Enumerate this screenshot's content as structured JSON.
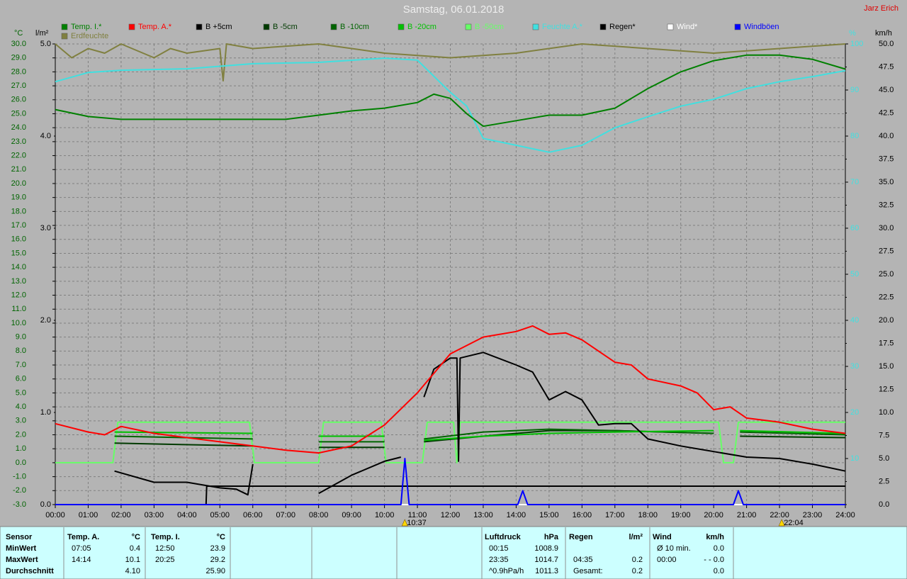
{
  "chart_data": {
    "type": "line",
    "title": "Samstag, 06.01.2018",
    "author": "Jarz Erich",
    "axis_units": {
      "y": "°C",
      "y2": "l/m²",
      "y3": "%",
      "y4": "km/h"
    },
    "grid": true,
    "xlim": [
      0,
      24
    ],
    "xticks": [
      {
        "value": 0,
        "label": "00:00"
      },
      {
        "value": 1,
        "label": "01:00"
      },
      {
        "value": 2,
        "label": "02:00"
      },
      {
        "value": 3,
        "label": "03:00"
      },
      {
        "value": 4,
        "label": "04:00"
      },
      {
        "value": 5,
        "label": "05:00"
      },
      {
        "value": 6,
        "label": "06:00"
      },
      {
        "value": 7,
        "label": "07:00"
      },
      {
        "value": 8,
        "label": "08:00"
      },
      {
        "value": 9,
        "label": "09:00"
      },
      {
        "value": 10,
        "label": "10:00"
      },
      {
        "value": 11,
        "label": "11:00"
      },
      {
        "value": 12,
        "label": "12:00"
      },
      {
        "value": 13,
        "label": "13:00"
      },
      {
        "value": 14,
        "label": "14:00"
      },
      {
        "value": 15,
        "label": "15:00"
      },
      {
        "value": 16,
        "label": "16:00"
      },
      {
        "value": 17,
        "label": "17:00"
      },
      {
        "value": 18,
        "label": "18:00"
      },
      {
        "value": 19,
        "label": "19:00"
      },
      {
        "value": 20,
        "label": "20:00"
      },
      {
        "value": 21,
        "label": "21:00"
      },
      {
        "value": 22,
        "label": "22:00"
      },
      {
        "value": 23,
        "label": "23:00"
      },
      {
        "value": 24,
        "label": "24:00"
      }
    ],
    "ylim": [
      -3,
      30
    ],
    "yticks": [
      {
        "value": -3,
        "label": "-3.0"
      },
      {
        "value": -2,
        "label": "-2.0"
      },
      {
        "value": -1,
        "label": "-1.0"
      },
      {
        "value": 0,
        "label": "0.0"
      },
      {
        "value": 1,
        "label": "1.0"
      },
      {
        "value": 2,
        "label": "2.0"
      },
      {
        "value": 3,
        "label": "3.0"
      },
      {
        "value": 4,
        "label": "4.0"
      },
      {
        "value": 5,
        "label": "5.0"
      },
      {
        "value": 6,
        "label": "6.0"
      },
      {
        "value": 7,
        "label": "7.0"
      },
      {
        "value": 8,
        "label": "8.0"
      },
      {
        "value": 9,
        "label": "9.0"
      },
      {
        "value": 10,
        "label": "10.0"
      },
      {
        "value": 11,
        "label": "11.0"
      },
      {
        "value": 12,
        "label": "12.0"
      },
      {
        "value": 13,
        "label": "13.0"
      },
      {
        "value": 14,
        "label": "14.0"
      },
      {
        "value": 15,
        "label": "15.0"
      },
      {
        "value": 16,
        "label": "16.0"
      },
      {
        "value": 17,
        "label": "17.0"
      },
      {
        "value": 18,
        "label": "18.0"
      },
      {
        "value": 19,
        "label": "19.0"
      },
      {
        "value": 20,
        "label": "20.0"
      },
      {
        "value": 21,
        "label": "21.0"
      },
      {
        "value": 22,
        "label": "22.0"
      },
      {
        "value": 23,
        "label": "23.0"
      },
      {
        "value": 24,
        "label": "24.0"
      },
      {
        "value": 25,
        "label": "25.0"
      },
      {
        "value": 26,
        "label": "26.0"
      },
      {
        "value": 27,
        "label": "27.0"
      },
      {
        "value": 28,
        "label": "28.0"
      },
      {
        "value": 29,
        "label": "29.0"
      },
      {
        "value": 30,
        "label": "30.0"
      }
    ],
    "y2lim": [
      0,
      5
    ],
    "y2ticks": [
      {
        "value": 0,
        "label": "0.0"
      },
      {
        "value": 1,
        "label": "1.0"
      },
      {
        "value": 2,
        "label": "2.0"
      },
      {
        "value": 3,
        "label": "3.0"
      },
      {
        "value": 4,
        "label": "4.0"
      },
      {
        "value": 5,
        "label": "5.0"
      }
    ],
    "y3lim": [
      0,
      100
    ],
    "y3ticks": [
      10,
      20,
      30,
      40,
      50,
      60,
      70,
      80,
      90,
      100
    ],
    "y4lim": [
      0,
      50
    ],
    "y4ticks": [
      {
        "value": 0,
        "label": "0.0"
      },
      {
        "value": 2.5,
        "label": "2.5"
      },
      {
        "value": 5,
        "label": "5.0"
      },
      {
        "value": 7.5,
        "label": "7.5"
      },
      {
        "value": 10,
        "label": "10.0"
      },
      {
        "value": 12.5,
        "label": "12.5"
      },
      {
        "value": 15,
        "label": "15.0"
      },
      {
        "value": 17.5,
        "label": "17.5"
      },
      {
        "value": 20,
        "label": "20.0"
      },
      {
        "value": 22.5,
        "label": "22.5"
      },
      {
        "value": 25,
        "label": "25.0"
      },
      {
        "value": 27.5,
        "label": "27.5"
      },
      {
        "value": 30,
        "label": "30.0"
      },
      {
        "value": 32.5,
        "label": "32.5"
      },
      {
        "value": 35,
        "label": "35.0"
      },
      {
        "value": 37.5,
        "label": "37.5"
      },
      {
        "value": 40,
        "label": "40.0"
      },
      {
        "value": 42.5,
        "label": "42.5"
      },
      {
        "value": 45,
        "label": "45.0"
      },
      {
        "value": 47.5,
        "label": "47.5"
      },
      {
        "value": 50,
        "label": "50.0"
      }
    ],
    "markers": [
      {
        "x": 10.617,
        "label": "10:37"
      },
      {
        "x": 22.067,
        "label": "22:04"
      }
    ],
    "series": [
      {
        "name": "Temp. I.*",
        "color": "#008000",
        "axis": "y",
        "x": [
          0,
          1,
          2,
          7,
          8,
          9,
          10,
          11,
          11.5,
          12,
          12.5,
          13,
          14,
          15,
          16,
          17,
          18,
          19,
          20,
          21,
          22,
          23,
          24
        ],
        "values": [
          25.3,
          24.8,
          24.6,
          24.6,
          24.9,
          25.2,
          25.4,
          25.8,
          26.4,
          26.1,
          25.0,
          24.1,
          24.5,
          24.9,
          24.9,
          25.4,
          26.8,
          28.0,
          28.8,
          29.2,
          29.2,
          28.9,
          28.2
        ]
      },
      {
        "name": "Temp. A.*",
        "color": "#ff0000",
        "axis": "y",
        "x": [
          0,
          1,
          1.5,
          2,
          3,
          4,
          5,
          6,
          7,
          8,
          9,
          10,
          11,
          12,
          12.5,
          13,
          14,
          14.5,
          15,
          15.5,
          16,
          17,
          17.5,
          18,
          19,
          19.5,
          20,
          20.5,
          21,
          22,
          23,
          24
        ],
        "values": [
          2.8,
          2.2,
          2.0,
          2.6,
          2.1,
          1.8,
          1.5,
          1.2,
          0.9,
          0.7,
          1.2,
          2.7,
          5.0,
          7.8,
          8.4,
          9.0,
          9.4,
          9.8,
          9.2,
          9.3,
          8.8,
          7.2,
          7.0,
          6.0,
          5.5,
          5.0,
          3.8,
          4.0,
          3.2,
          2.9,
          2.4,
          2.1
        ]
      },
      {
        "name": "B +5cm",
        "color": "#000000",
        "axis": "y",
        "x": [
          1.8,
          3,
          4,
          5,
          5.5,
          5.85,
          6,
          7,
          8,
          9,
          10,
          10.5,
          11,
          11.2,
          11.5,
          12,
          12.2,
          12.25,
          12.3,
          13,
          14,
          14.5,
          15,
          15.5,
          16,
          16.5,
          17,
          17.5,
          18,
          19,
          20,
          21,
          22,
          23,
          24
        ],
        "values": [
          -0.6,
          -1.4,
          -1.4,
          -1.8,
          -1.9,
          -2.3,
          -0.1,
          null,
          -2.2,
          -0.9,
          0.1,
          0.4,
          null,
          4.7,
          6.7,
          7.5,
          7.5,
          0.1,
          7.5,
          7.9,
          7.0,
          6.5,
          4.5,
          5.1,
          4.5,
          2.7,
          2.8,
          2.8,
          1.7,
          1.2,
          0.8,
          0.4,
          0.3,
          -0.1,
          -0.6
        ]
      },
      {
        "name": "B -5cm",
        "color": "#003a00",
        "axis": "y",
        "x": [
          1.8,
          6,
          7,
          8,
          10,
          11,
          11.2,
          13,
          15,
          17,
          20,
          20.5,
          20.8,
          24
        ],
        "values": [
          1.4,
          1.2,
          null,
          1.1,
          1.1,
          null,
          1.5,
          1.9,
          2.3,
          2.3,
          2.1,
          null,
          1.9,
          1.8
        ]
      },
      {
        "name": "B -10cm",
        "color": "#006400",
        "axis": "y",
        "x": [
          1.8,
          6,
          7,
          8,
          10,
          11,
          11.2,
          13,
          15,
          17,
          20,
          20.5,
          20.8,
          24
        ],
        "values": [
          1.9,
          1.7,
          null,
          1.5,
          1.5,
          null,
          1.7,
          2.2,
          2.4,
          2.3,
          2.1,
          null,
          2.2,
          2.0
        ]
      },
      {
        "name": "B -20cm",
        "color": "#00c000",
        "axis": "y",
        "x": [
          1.8,
          6,
          7,
          8,
          10,
          11,
          11.2,
          13,
          15,
          17,
          20,
          20.5,
          20.8,
          24
        ],
        "values": [
          2.2,
          2.1,
          null,
          1.9,
          1.9,
          null,
          1.6,
          1.9,
          2.1,
          2.2,
          2.3,
          null,
          2.3,
          2.1
        ]
      },
      {
        "name": "B -50cm",
        "color": "#66ff66",
        "axis": "y",
        "x": [
          0,
          1.75,
          1.9,
          5.9,
          6.05,
          8,
          8.15,
          9.9,
          10.05,
          11.15,
          11.3,
          12.1,
          12.2,
          12.3,
          20.15,
          20.3,
          20.6,
          20.75,
          24
        ],
        "values": [
          0,
          0,
          2.9,
          2.9,
          0,
          0,
          2.9,
          2.9,
          0,
          0,
          2.9,
          2.9,
          0,
          2.9,
          2.9,
          0,
          0,
          2.9,
          2.9
        ]
      },
      {
        "name": "Feuchte A.*",
        "color": "#40e0e0",
        "axis": "y3",
        "x": [
          0,
          1,
          2,
          4,
          6,
          8,
          10,
          11,
          12,
          12.5,
          13,
          14,
          15,
          16,
          17,
          18,
          19,
          20,
          21,
          22,
          23,
          24
        ],
        "values": [
          91.8,
          93.8,
          94.3,
          94.6,
          95.7,
          96.0,
          96.9,
          96.5,
          89.5,
          86.5,
          79.5,
          78.0,
          76.5,
          78.0,
          81.8,
          84.2,
          86.5,
          88.0,
          90.3,
          91.8,
          92.9,
          94.2
        ]
      },
      {
        "name": "Regen*",
        "color": "#000000",
        "axis": "y2",
        "x": [
          0,
          4.58,
          4.6,
          24
        ],
        "values": [
          0,
          0,
          0.2,
          0.2
        ]
      },
      {
        "name": "Wind*",
        "color": "#ffffff",
        "axis": "y4",
        "x": [
          0,
          24
        ],
        "values": [
          0,
          0
        ]
      },
      {
        "name": "Windböen",
        "color": "#0000ff",
        "axis": "y4",
        "x": [
          0,
          10.5,
          10.62,
          10.75,
          14.05,
          14.2,
          14.35,
          20.6,
          20.75,
          20.9,
          24
        ],
        "values": [
          0,
          0,
          5.0,
          0,
          0,
          1.5,
          0,
          0,
          1.5,
          0,
          0
        ]
      },
      {
        "name": "Erdfeuchte",
        "color": "#808040",
        "axis": "y2",
        "x": [
          0,
          0.5,
          1,
          1.5,
          2,
          3,
          3.5,
          4,
          5,
          5.1,
          5.2,
          6,
          8,
          10,
          12,
          14,
          16,
          18,
          20,
          22,
          24
        ],
        "values": [
          5.0,
          4.85,
          4.95,
          4.9,
          5.0,
          4.85,
          4.95,
          4.9,
          4.95,
          4.6,
          5.0,
          4.95,
          5.0,
          4.9,
          4.85,
          4.9,
          5.0,
          4.95,
          4.9,
          4.95,
          5.0
        ]
      }
    ]
  },
  "stats": {
    "sensor": {
      "header": "Sensor",
      "rows": [
        "MinWert",
        "MaxWert",
        "Durchschnitt"
      ]
    },
    "groups": [
      {
        "header": "Temp. A.",
        "unit": "°C",
        "rows": [
          {
            "time": "07:05",
            "value": "0.4"
          },
          {
            "time": "14:14",
            "value": "10.1"
          },
          {
            "value": "4.10"
          }
        ]
      },
      {
        "header": "Temp. I.",
        "unit": "°C",
        "rows": [
          {
            "time": "12:50",
            "value": "23.9"
          },
          {
            "time": "20:25",
            "value": "29.2"
          },
          {
            "value": "25.90"
          }
        ]
      },
      {
        "header": "Luftdruck",
        "unit": "hPa",
        "rows": [
          {
            "time": "00:15",
            "value": "1008.9"
          },
          {
            "time": "23:35",
            "value": "1014.7"
          },
          {
            "time": "^0.9hPa/h",
            "value": "1011.3"
          }
        ]
      },
      {
        "header": "Regen",
        "unit": "l/m²",
        "rows": [
          null,
          {
            "time": "04:35",
            "value": "0.2"
          },
          {
            "time": "Gesamt:",
            "value": "0.2"
          }
        ]
      },
      {
        "header": "Wind",
        "unit": "km/h",
        "rows": [
          {
            "time": "Ø 10 min.",
            "value": "0.0"
          },
          {
            "time": "00:00",
            "value": "- - 0.0"
          },
          {
            "value": "0.0"
          }
        ]
      }
    ]
  }
}
